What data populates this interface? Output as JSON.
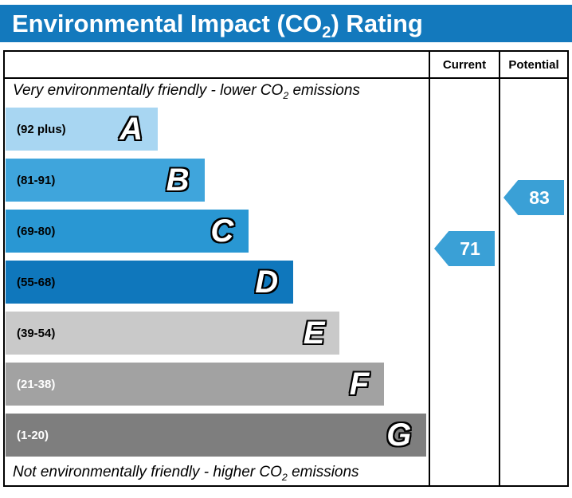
{
  "title": {
    "pre": "Environmental Impact (CO",
    "sub": "2",
    "post": ") Rating"
  },
  "columns": {
    "current": "Current",
    "potential": "Potential"
  },
  "notes": {
    "top": {
      "pre": "Very environmentally friendly - lower CO",
      "sub": "2",
      "post": " emissions"
    },
    "bottom": {
      "pre": "Not environmentally friendly - higher CO",
      "sub": "2",
      "post": " emissions"
    }
  },
  "colors": {
    "title_bg": "#1379bd",
    "title_fg": "#ffffff",
    "border": "#000000",
    "arrow": "#3aa0d6"
  },
  "chart_data": {
    "type": "bar",
    "orientation": "horizontal",
    "title": "Environmental Impact (CO2) Rating",
    "bands": [
      {
        "letter": "A",
        "range": "(92 plus)",
        "color": "#a8d6f2",
        "text_color": "#000000",
        "width_pct": 36
      },
      {
        "letter": "B",
        "range": "(81-91)",
        "color": "#3fa5dc",
        "text_color": "#000000",
        "width_pct": 47
      },
      {
        "letter": "C",
        "range": "(69-80)",
        "color": "#2997d3",
        "text_color": "#000000",
        "width_pct": 57.5
      },
      {
        "letter": "D",
        "range": "(55-68)",
        "color": "#0f77bc",
        "text_color": "#000000",
        "width_pct": 68
      },
      {
        "letter": "E",
        "range": "(39-54)",
        "color": "#c9c9c9",
        "text_color": "#000000",
        "width_pct": 79
      },
      {
        "letter": "F",
        "range": "(21-38)",
        "color": "#a2a2a2",
        "text_color": "#ffffff",
        "width_pct": 89.5
      },
      {
        "letter": "G",
        "range": "(1-20)",
        "color": "#7e7e7e",
        "text_color": "#ffffff",
        "width_pct": 99.5
      }
    ],
    "current": {
      "value": "71",
      "band": "C",
      "band_index": 2,
      "color": "#3aa0d6"
    },
    "potential": {
      "value": "83",
      "band": "B",
      "band_index": 1,
      "color": "#3aa0d6"
    }
  }
}
